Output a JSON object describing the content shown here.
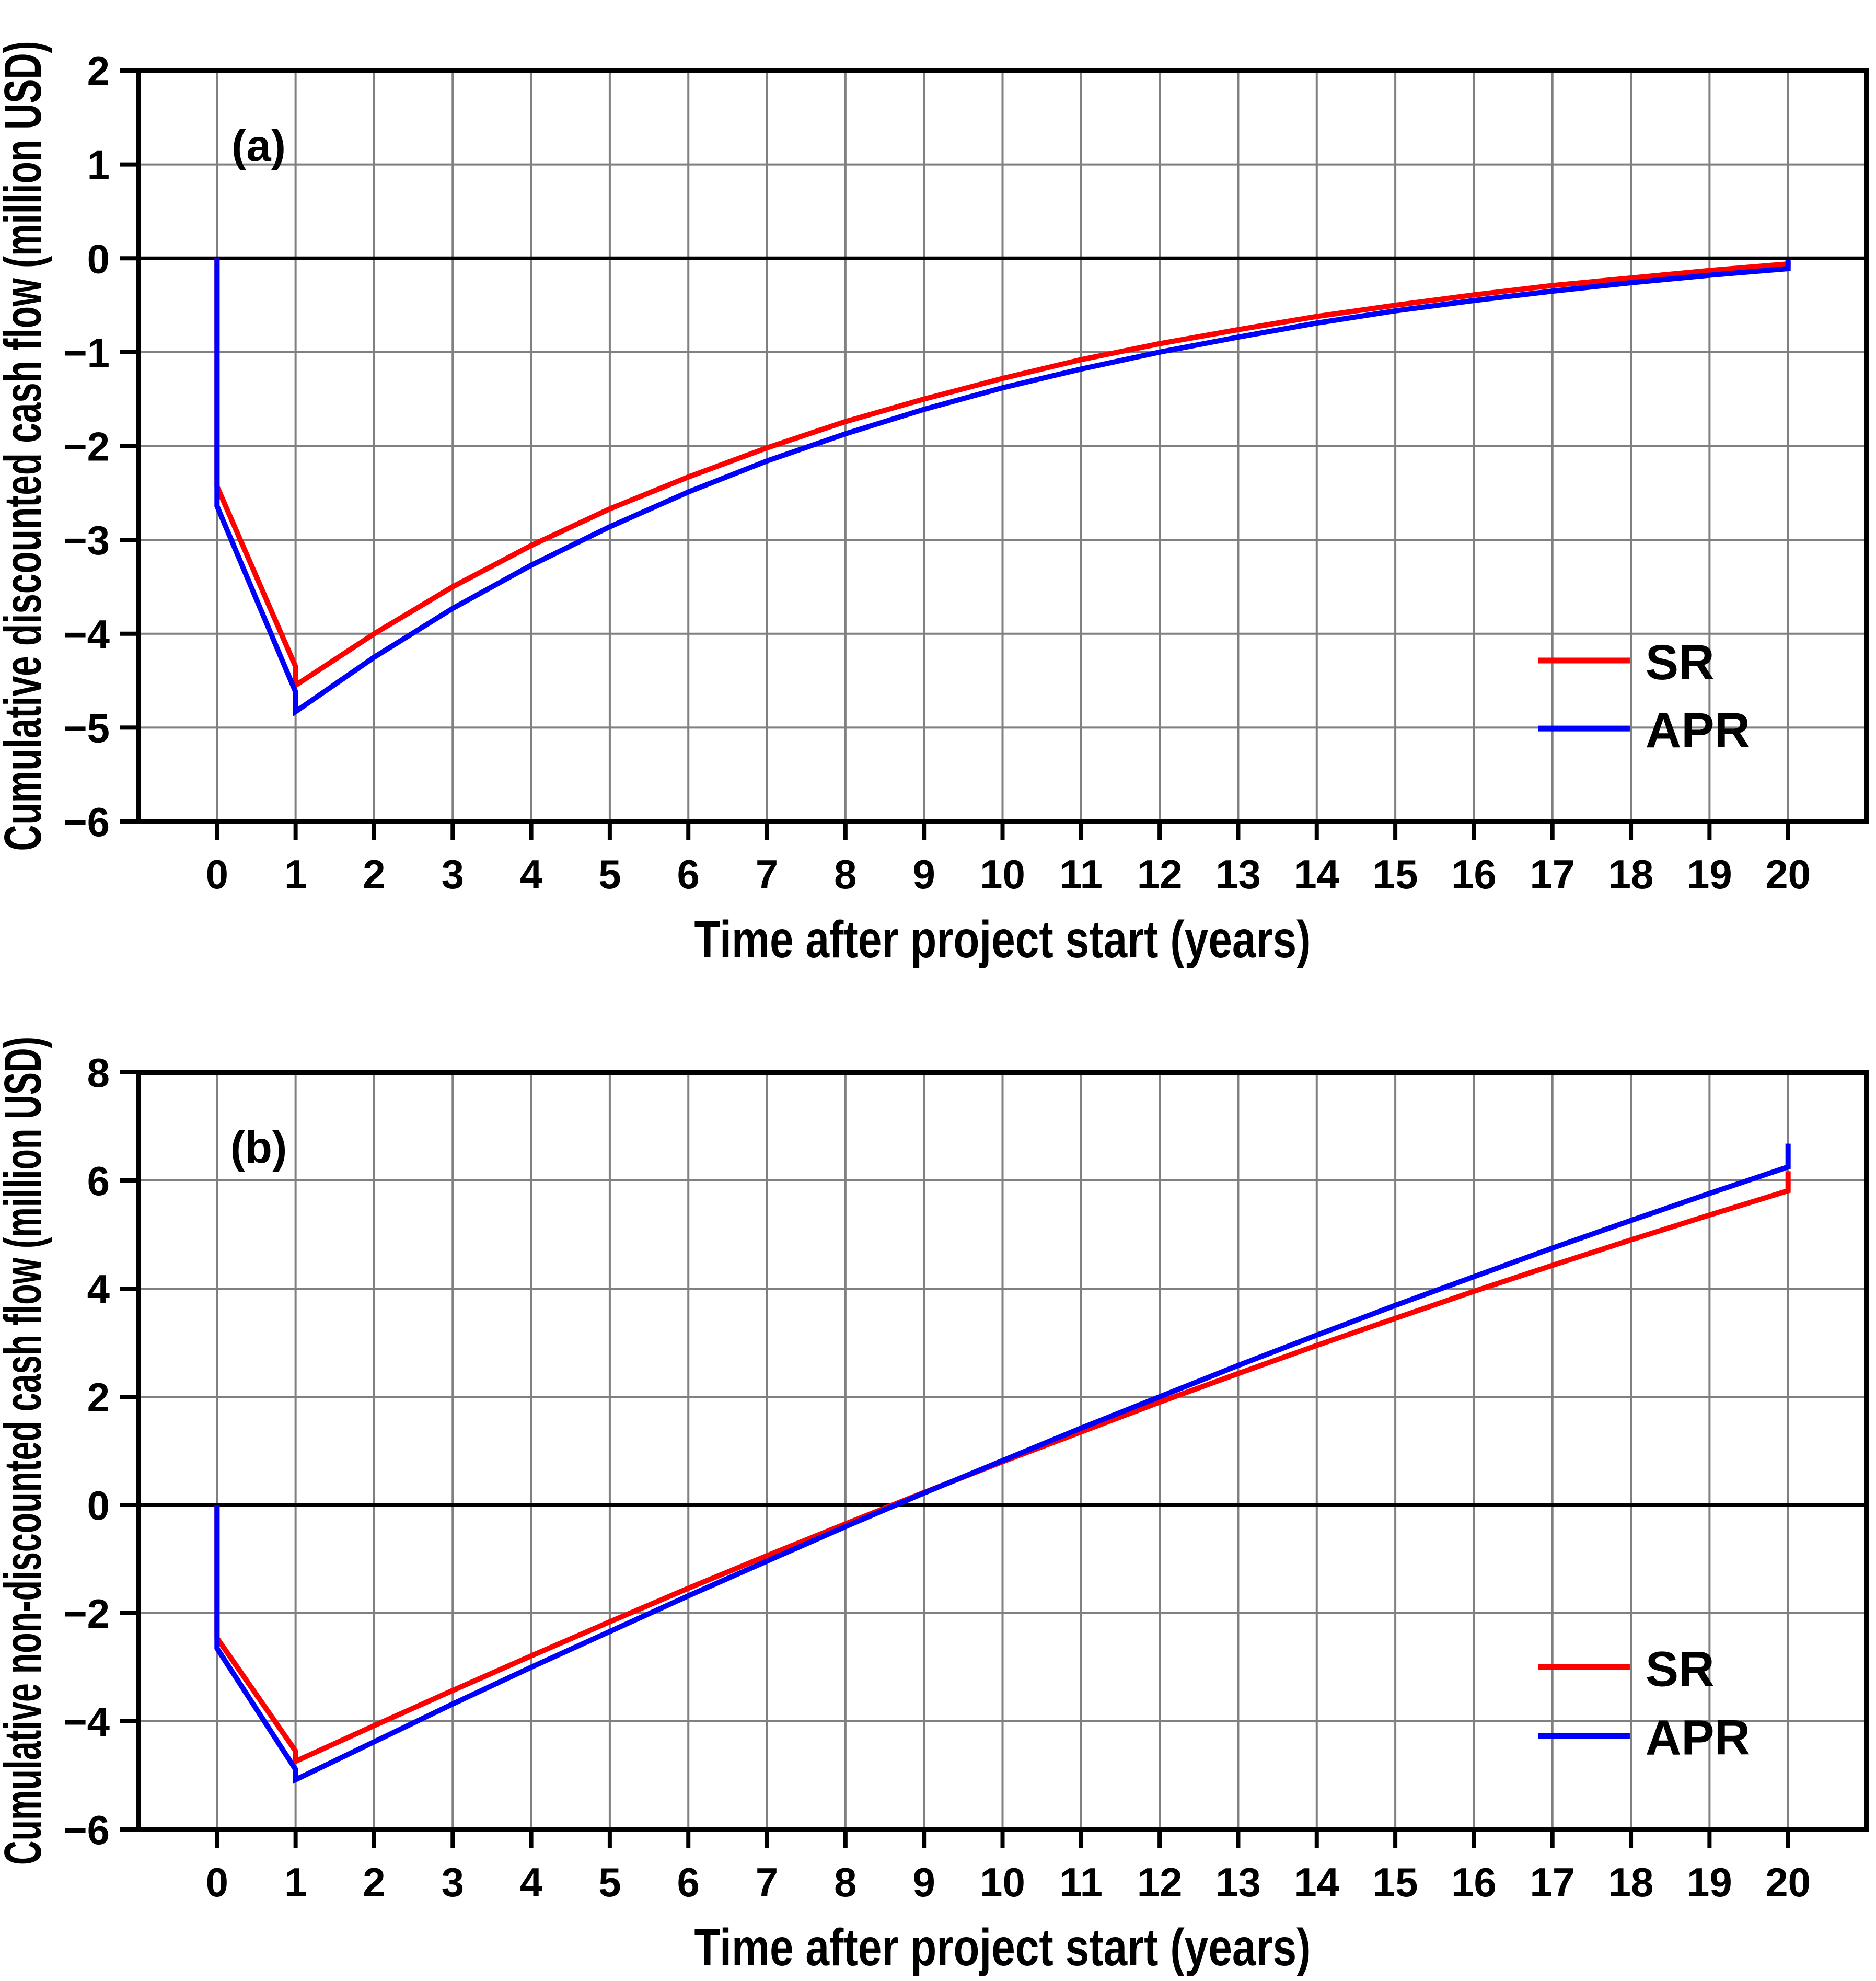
{
  "figure": {
    "background_color": "#ffffff",
    "colors": {
      "sr_line": "#ff0000",
      "apr_line": "#0000ff",
      "grid": "#808080",
      "axis": "#000000"
    }
  },
  "chart_data": [
    {
      "type": "line",
      "panel_label": "(a)",
      "xlabel": "Time after project start (years)",
      "ylabel": "Cumulative discounted cash flow (million USD)",
      "xlim": [
        -1,
        21
      ],
      "ylim": [
        -6,
        2
      ],
      "x_ticks": [
        0,
        1,
        2,
        3,
        4,
        5,
        6,
        7,
        8,
        9,
        10,
        11,
        12,
        13,
        14,
        15,
        16,
        17,
        18,
        19,
        20
      ],
      "x_tick_labels": [
        "0",
        "1",
        "2",
        "3",
        "4",
        "5",
        "6",
        "7",
        "8",
        "9",
        "10",
        "11",
        "12",
        "13",
        "14",
        "15",
        "16",
        "17",
        "18",
        "19",
        "20"
      ],
      "y_ticks": [
        2,
        1,
        0,
        -1,
        -2,
        -3,
        -4,
        -5,
        -6
      ],
      "y_tick_labels": [
        "2",
        "1",
        "0",
        "−1",
        "−2",
        "−3",
        "−4",
        "−5",
        "−6"
      ],
      "grid": true,
      "zero_line": true,
      "legend": {
        "position": "lower-right",
        "entries": [
          {
            "label": "SR",
            "color": "#ff0000"
          },
          {
            "label": "APR",
            "color": "#0000ff"
          }
        ]
      },
      "series": [
        {
          "name": "SR",
          "color": "#ff0000",
          "points": [
            [
              0,
              0
            ],
            [
              0,
              -2.43
            ],
            [
              1,
              -4.35
            ],
            [
              1,
              -4.55
            ],
            [
              2,
              -4.0
            ],
            [
              3,
              -3.5
            ],
            [
              4,
              -3.06
            ],
            [
              5,
              -2.67
            ],
            [
              6,
              -2.33
            ],
            [
              7,
              -2.02
            ],
            [
              8,
              -1.74
            ],
            [
              9,
              -1.5
            ],
            [
              10,
              -1.28
            ],
            [
              11,
              -1.08
            ],
            [
              12,
              -0.91
            ],
            [
              13,
              -0.76
            ],
            [
              14,
              -0.62
            ],
            [
              15,
              -0.5
            ],
            [
              16,
              -0.39
            ],
            [
              17,
              -0.29
            ],
            [
              18,
              -0.21
            ],
            [
              19,
              -0.13
            ],
            [
              20,
              -0.06
            ],
            [
              20,
              -0.04
            ]
          ]
        },
        {
          "name": "APR",
          "color": "#0000ff",
          "points": [
            [
              0,
              0
            ],
            [
              0,
              -2.64
            ],
            [
              1,
              -4.62
            ],
            [
              1,
              -4.83
            ],
            [
              2,
              -4.25
            ],
            [
              3,
              -3.73
            ],
            [
              4,
              -3.27
            ],
            [
              5,
              -2.86
            ],
            [
              6,
              -2.49
            ],
            [
              7,
              -2.16
            ],
            [
              8,
              -1.87
            ],
            [
              9,
              -1.61
            ],
            [
              10,
              -1.38
            ],
            [
              11,
              -1.18
            ],
            [
              12,
              -1.0
            ],
            [
              13,
              -0.84
            ],
            [
              14,
              -0.69
            ],
            [
              15,
              -0.56
            ],
            [
              16,
              -0.45
            ],
            [
              17,
              -0.35
            ],
            [
              18,
              -0.26
            ],
            [
              19,
              -0.18
            ],
            [
              20,
              -0.11
            ],
            [
              20,
              -0.02
            ]
          ]
        }
      ]
    },
    {
      "type": "line",
      "panel_label": "(b)",
      "xlabel": "Time after project start (years)",
      "ylabel": "Cumulative non-discounted cash flow (million USD)",
      "xlim": [
        -1,
        21
      ],
      "ylim": [
        -6,
        8
      ],
      "x_ticks": [
        0,
        1,
        2,
        3,
        4,
        5,
        6,
        7,
        8,
        9,
        10,
        11,
        12,
        13,
        14,
        15,
        16,
        17,
        18,
        19,
        20
      ],
      "x_tick_labels": [
        "0",
        "1",
        "2",
        "3",
        "4",
        "5",
        "6",
        "7",
        "8",
        "9",
        "10",
        "11",
        "12",
        "13",
        "14",
        "15",
        "16",
        "17",
        "18",
        "19",
        "20"
      ],
      "y_ticks": [
        8,
        6,
        4,
        2,
        0,
        -2,
        -4,
        -6
      ],
      "y_tick_labels": [
        "8",
        "6",
        "4",
        "2",
        "0",
        "−2",
        "−4",
        "−6"
      ],
      "grid": true,
      "zero_line": true,
      "legend": {
        "position": "lower-right",
        "entries": [
          {
            "label": "SR",
            "color": "#ff0000"
          },
          {
            "label": "APR",
            "color": "#0000ff"
          }
        ]
      },
      "series": [
        {
          "name": "SR",
          "color": "#ff0000",
          "points": [
            [
              0,
              0
            ],
            [
              0,
              -2.46
            ],
            [
              1,
              -4.55
            ],
            [
              1,
              -4.74
            ],
            [
              2,
              -4.08
            ],
            [
              3,
              -3.43
            ],
            [
              4,
              -2.79
            ],
            [
              5,
              -2.16
            ],
            [
              6,
              -1.54
            ],
            [
              7,
              -0.94
            ],
            [
              8,
              -0.35
            ],
            [
              9,
              0.23
            ],
            [
              10,
              0.8
            ],
            [
              11,
              1.35
            ],
            [
              12,
              1.9
            ],
            [
              13,
              2.43
            ],
            [
              14,
              2.95
            ],
            [
              15,
              3.45
            ],
            [
              16,
              3.95
            ],
            [
              17,
              4.43
            ],
            [
              18,
              4.9
            ],
            [
              19,
              5.36
            ],
            [
              20,
              5.81
            ],
            [
              20,
              6.17
            ]
          ]
        },
        {
          "name": "APR",
          "color": "#0000ff",
          "points": [
            [
              0,
              0
            ],
            [
              0,
              -2.65
            ],
            [
              1,
              -4.89
            ],
            [
              1,
              -5.08
            ],
            [
              2,
              -4.38
            ],
            [
              3,
              -3.68
            ],
            [
              4,
              -3.0
            ],
            [
              5,
              -2.34
            ],
            [
              6,
              -1.68
            ],
            [
              7,
              -1.04
            ],
            [
              8,
              -0.4
            ],
            [
              9,
              0.22
            ],
            [
              10,
              0.82
            ],
            [
              11,
              1.42
            ],
            [
              12,
              2.0
            ],
            [
              13,
              2.58
            ],
            [
              14,
              3.14
            ],
            [
              15,
              3.69
            ],
            [
              16,
              4.22
            ],
            [
              17,
              4.75
            ],
            [
              18,
              5.26
            ],
            [
              19,
              5.76
            ],
            [
              20,
              6.25
            ],
            [
              20,
              6.68
            ]
          ]
        }
      ]
    }
  ]
}
